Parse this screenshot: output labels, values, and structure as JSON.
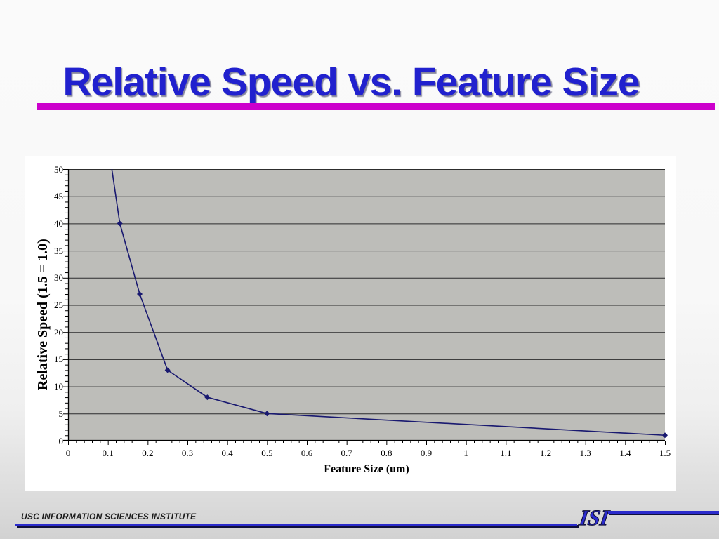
{
  "slide": {
    "title": "Relative Speed vs. Feature Size",
    "title_color": "#2121ce",
    "underline_color": "#cc00cc",
    "background_top": "#fafafa",
    "background_bottom": "#d2d2d2"
  },
  "footer": {
    "text": "USC INFORMATION SCIENCES INSTITUTE",
    "logo_text": "ISI",
    "line_color": "#2b2bcc"
  },
  "chart_data": {
    "type": "line",
    "title": "",
    "xlabel": "Feature Size (um)",
    "ylabel": "Relative Speed (1.5 = 1.0)",
    "ylabel_displayed_truncated": "Relative Speed (1.5 = 1.(",
    "xlim": [
      0,
      1.5
    ],
    "ylim": [
      0,
      50
    ],
    "x_tick_values": [
      0,
      0.1,
      0.2,
      0.3,
      0.4,
      0.5,
      0.6,
      0.7,
      0.8,
      0.9,
      1,
      1.1,
      1.2,
      1.3,
      1.4,
      1.5
    ],
    "x_tick_labels": [
      "0",
      "0.1",
      "0.2",
      "0.3",
      "0.4",
      "0.5",
      "0.6",
      "0.7",
      "0.8",
      "0.9",
      "1",
      "1.1",
      "1.2",
      "1.3",
      "1.4",
      "1.5"
    ],
    "y_tick_values": [
      0,
      5,
      10,
      15,
      20,
      25,
      30,
      35,
      40,
      45,
      50
    ],
    "y_tick_labels": [
      "0",
      "5",
      "10",
      "15",
      "20",
      "25",
      "30",
      "35",
      "40",
      "45",
      "50"
    ],
    "x_minor_tick_step": 0.02,
    "y_minor_tick_step": 1,
    "grid": "horizontal gridlines every 5 units",
    "legend": "none",
    "plot_bg": "#bdbdb9",
    "gridline_color": "#2d2d2d",
    "series": [
      {
        "name": "Relative Speed",
        "color": "#191970",
        "marker": "diamond",
        "points": [
          [
            0.1,
            55
          ],
          [
            0.13,
            40
          ],
          [
            0.18,
            27
          ],
          [
            0.25,
            13
          ],
          [
            0.35,
            8
          ],
          [
            0.5,
            5
          ],
          [
            1.5,
            1
          ]
        ],
        "note": "first point exceeds y-axis max; line is clipped at top of plot near x=0.1"
      }
    ]
  }
}
